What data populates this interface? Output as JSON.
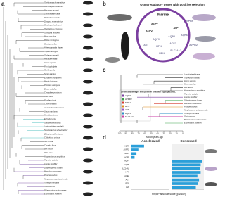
{
  "panels": {
    "a": {
      "label": "a",
      "species": [
        "Ornithorhynchus anatinus",
        "Monodelphis domestica",
        "Macropus eugenii",
        "Loxodonta africana",
        "Trichechus manatus",
        "Dasypus novemcinctus",
        "Choloepus hoffmanni",
        "Oryctolagus cuniculus",
        "Ochotona princeps",
        "Mus musculus",
        "Rattus norvegicus",
        "Cavia porcellus",
        "Heterocephalus glaber",
        "Tupaia belangeri",
        "Otolemur garnettii",
        "Macaca mulatta",
        "Homo sapiens",
        "Pan troglodytes",
        "Gorilla gorilla",
        "Sorex araneus",
        "Erinaceus europaeus",
        "Myotis lucifugus",
        "Pteropus vampyrus",
        "Equus caballus",
        "Ceratotherium simum",
        "Felis catus",
        "Panthera tigris",
        "Canis familiaris",
        "Ailuropoda melanoleuca",
        "Ursus maritimus",
        "Mustela putorius",
        "Enhydra lutris",
        "Odobenus rosmarus",
        "Leptonychotes weddellii",
        "Neomonachus schauinslandi",
        "Zalophus californianus",
        "Callorhinus ursinus",
        "Sus scrofa",
        "Camelus ferus",
        "Bos taurus",
        "Ovis aries",
        "Hippopotamus amphibius",
        "Physeter catodon",
        "Lipotes vexillifer",
        "Delphinapterus leucas",
        "Monodon monoceros",
        "Phocoena sinus",
        "Neophocaena asiaeorientalis",
        "Tursiops truncatus",
        "Orcinus orca",
        "Balaenoptera acutorostrata",
        "Eschrichtius robustus"
      ]
    },
    "b": {
      "label": "b",
      "title": "Osmoregulatory genes with positive selection",
      "circle": "Marine",
      "genes": [
        "AQP7",
        "AQP2",
        "AVP",
        "AQP6",
        "AQP9",
        "AQP8",
        "HPN",
        "ACE2",
        "REN",
        "AGT",
        "SLC14A2",
        "NPPA",
        "AVPR2"
      ]
    },
    "c": {
      "label": "c",
      "species": [
        "Loxodonta africana",
        "Trichechus manatus",
        "Homo sapiens",
        "Mus musculus",
        "Bos taurus",
        "Hippopotamus amphibius",
        "Physeter catodon",
        "Lipotes vexillifer",
        "Delphinapterus leucas",
        "Monodon monoceros",
        "Phocoena sinus",
        "Neophocaena asiaeorientalis",
        "Tursiops truncatus",
        "Orcinus orca",
        "Balaenoptera acutorostrata",
        "Eschrichtius robustus"
      ],
      "legend_title": "Genes and lineages with positive selection signs (aBSREL)",
      "legend": [
        {
          "name": "AQP2",
          "color": "#7b3fa0"
        },
        {
          "name": "AVPR2",
          "color": "#3aa14a"
        },
        {
          "name": "NPR1",
          "color": "#d43a2f"
        },
        {
          "name": "HPN",
          "color": "#e08a1e"
        },
        {
          "name": "AVP",
          "color": "#9c4fc4"
        },
        {
          "name": "AQP5",
          "color": "#2b8fc7"
        },
        {
          "name": "SLC14A1",
          "color": "#c93fa5"
        }
      ],
      "xticks": [
        100,
        90,
        80,
        70,
        60,
        50,
        40,
        30,
        20,
        10,
        0
      ],
      "xlim": [
        100,
        0
      ],
      "xlabel": "Million years ago"
    },
    "d": {
      "label": "d",
      "xlabel": "PhyloP absolute score (p-value)",
      "xlim": [
        0,
        4
      ],
      "accelerated": {
        "title": "Accelerated",
        "categories": [
          "AQP2",
          "AVPR2",
          "NPR1",
          "AQP5"
        ],
        "values": [
          1.4,
          0.8,
          0.6,
          0.4
        ],
        "color": "#2b9fd9"
      },
      "conserved": {
        "title": "Conserved",
        "categories": [
          "AQP7",
          "AQP6",
          "SLC14A2",
          "HPN",
          "ACE2",
          "AGT",
          "REN",
          "AVP"
        ],
        "values": [
          3.8,
          3.6,
          3.5,
          3.6,
          3.2,
          3.4,
          3.3,
          3.0
        ],
        "color": "#2b9fd9"
      }
    }
  }
}
